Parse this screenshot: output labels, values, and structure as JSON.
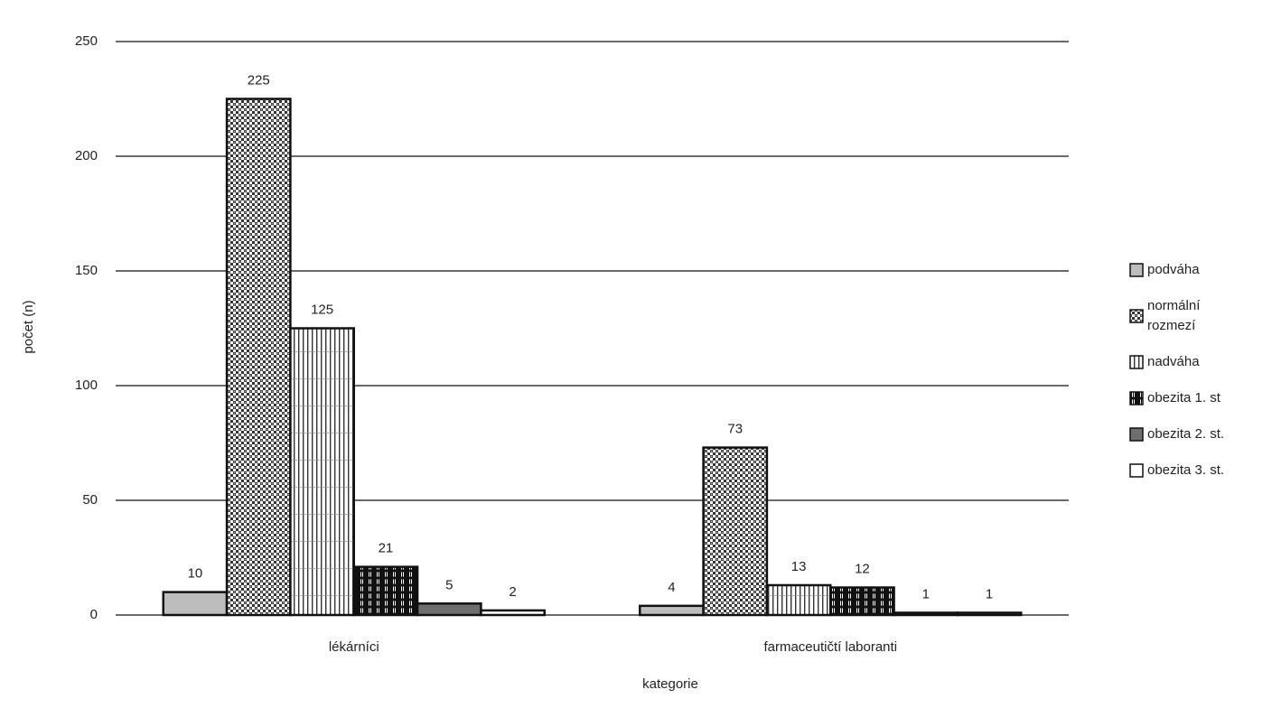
{
  "chart_data": {
    "type": "bar",
    "x_label": "kategorie",
    "y_label": "počet (n)",
    "categories": [
      "lékárníci",
      "farmaceutičtí laboranti"
    ],
    "series": [
      {
        "name": "podváha",
        "color": "#bdbdbd",
        "pattern": "solid",
        "values": [
          10,
          4
        ]
      },
      {
        "name": "normální rozmezí",
        "color": "#333333",
        "pattern": "checker",
        "values": [
          225,
          73
        ]
      },
      {
        "name": "nadváha",
        "color": "#333333",
        "pattern": "vertical",
        "values": [
          125,
          13
        ]
      },
      {
        "name": "obezita 1. st",
        "color": "#111111",
        "pattern": "dots",
        "values": [
          21,
          12
        ]
      },
      {
        "name": "obezita 2. st.",
        "color": "#6e6e6e",
        "pattern": "solid",
        "values": [
          5,
          1
        ]
      },
      {
        "name": "obezita 3. st.",
        "color": "#ffffff",
        "pattern": "solid",
        "values": [
          2,
          1
        ]
      }
    ],
    "ylim": [
      0,
      250
    ],
    "yticks": [
      0,
      50,
      100,
      150,
      200,
      250
    ],
    "grid": true,
    "legend": "right"
  }
}
